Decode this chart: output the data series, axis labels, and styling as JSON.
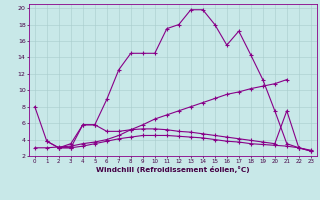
{
  "xlabel": "Windchill (Refroidissement éolien,°C)",
  "background_color": "#c8e8e8",
  "grid_color": "#a8cccc",
  "line_color": "#880088",
  "x_all": [
    0,
    1,
    2,
    3,
    4,
    5,
    6,
    7,
    8,
    9,
    10,
    11,
    12,
    13,
    14,
    15,
    16,
    17,
    18,
    19,
    20,
    21,
    22,
    23
  ],
  "line1": [
    8.0,
    3.8,
    3.0,
    3.0,
    5.8,
    5.8,
    8.9,
    12.5,
    14.5,
    14.5,
    14.5,
    17.5,
    18.0,
    19.8,
    19.8,
    18.0,
    15.5,
    17.2,
    14.3,
    11.3,
    7.5,
    3.5,
    3.0,
    2.6
  ],
  "line2_x": [
    0,
    1,
    2,
    3,
    4,
    5,
    6,
    7,
    8,
    9,
    10,
    11,
    12,
    13,
    14,
    15,
    16,
    17,
    18,
    19,
    20,
    21
  ],
  "line2_y": [
    3.0,
    3.0,
    3.1,
    3.2,
    3.5,
    3.7,
    4.0,
    4.5,
    5.2,
    5.8,
    6.5,
    7.0,
    7.5,
    8.0,
    8.5,
    9.0,
    9.5,
    9.8,
    10.2,
    10.5,
    10.8,
    11.3
  ],
  "line3_x": [
    1,
    2,
    3,
    4,
    5,
    6,
    7,
    8,
    9,
    10,
    11,
    12,
    13,
    14,
    15,
    16,
    17,
    18,
    19,
    20,
    21,
    22,
    23
  ],
  "line3_y": [
    3.8,
    3.0,
    3.5,
    5.8,
    5.8,
    5.0,
    5.0,
    5.2,
    5.3,
    5.3,
    5.2,
    5.0,
    4.9,
    4.7,
    4.5,
    4.3,
    4.1,
    3.9,
    3.7,
    3.5,
    7.5,
    3.0,
    2.6
  ],
  "line4_x": [
    2,
    3,
    4,
    5,
    6,
    7,
    8,
    9,
    10,
    11,
    12,
    13,
    14,
    15,
    16,
    17,
    18,
    19,
    20,
    21,
    22,
    23
  ],
  "line4_y": [
    3.0,
    3.0,
    3.2,
    3.5,
    3.8,
    4.1,
    4.3,
    4.5,
    4.5,
    4.5,
    4.4,
    4.3,
    4.2,
    4.0,
    3.8,
    3.7,
    3.5,
    3.4,
    3.3,
    3.2,
    3.0,
    2.7
  ],
  "ylim_min": 2.0,
  "ylim_max": 20.5,
  "yticks": [
    2,
    4,
    6,
    8,
    10,
    12,
    14,
    16,
    18,
    20
  ],
  "xticks": [
    0,
    1,
    2,
    3,
    4,
    5,
    6,
    7,
    8,
    9,
    10,
    11,
    12,
    13,
    14,
    15,
    16,
    17,
    18,
    19,
    20,
    21,
    22,
    23
  ]
}
